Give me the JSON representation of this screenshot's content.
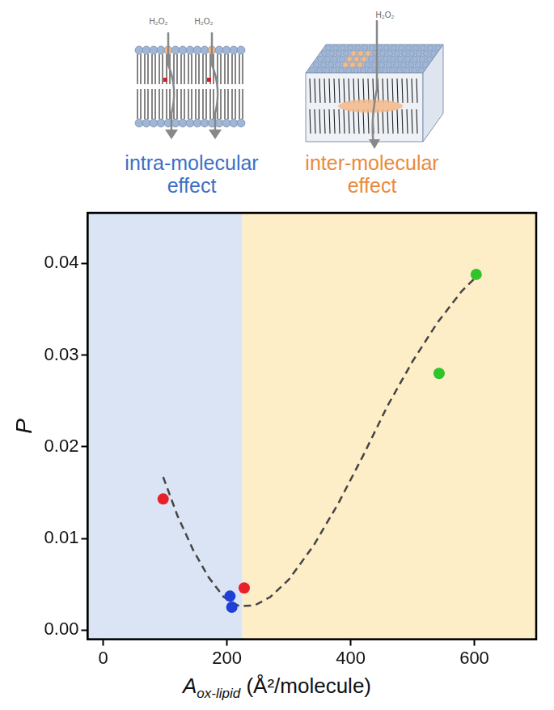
{
  "chart_data": {
    "type": "scatter",
    "xlabel": {
      "main": "A",
      "subscript": "ox-lipid",
      "suffix": " (Å²/molecule)"
    },
    "ylabel": "P",
    "xlim": [
      -25,
      700
    ],
    "xticks": [
      0,
      200,
      400,
      600
    ],
    "ylim": [
      -0.001,
      0.0455
    ],
    "yticks": [
      {
        "value": 0,
        "label": "0.00"
      },
      {
        "value": 0.01,
        "label": "0.01"
      },
      {
        "value": 0.02,
        "label": "0.02"
      },
      {
        "value": 0.03,
        "label": "0.03"
      },
      {
        "value": 0.04,
        "label": "0.04"
      }
    ],
    "grid": false,
    "regions": [
      {
        "from": -25,
        "to": 225,
        "color": "#dbe4f4",
        "caption": [
          "intra-molecular",
          "effect"
        ],
        "caption_color": "#3d6fc6",
        "illustration_labels": [
          "H₂O₂",
          "H₂O₂"
        ]
      },
      {
        "from": 225,
        "to": 700,
        "color": "#fdeec8",
        "caption": [
          "inter-molecular",
          "effect"
        ],
        "caption_color": "#ea8a3c",
        "illustration_labels": [
          "H₂O₂"
        ]
      }
    ],
    "series": [
      {
        "type": "line",
        "color": "#444444",
        "line_style": "dashed",
        "marker": "none",
        "x": [
          97,
          120,
          145,
          170,
          195,
          220,
          245,
          270,
          300,
          340,
          380,
          420,
          460,
          500,
          540,
          580,
          610
        ],
        "values": [
          0.0167,
          0.0125,
          0.0088,
          0.0058,
          0.0036,
          0.0026,
          0.0027,
          0.0036,
          0.0055,
          0.0092,
          0.0138,
          0.019,
          0.0245,
          0.0293,
          0.0335,
          0.037,
          0.039
        ]
      },
      {
        "type": "scatter",
        "color": "#e8202a",
        "marker": "circle",
        "x": [
          97,
          228
        ],
        "values": [
          0.0143,
          0.0046
        ]
      },
      {
        "type": "scatter",
        "color": "#1f3fd6",
        "marker": "circle",
        "x": [
          205,
          208
        ],
        "values": [
          0.0037,
          0.0025
        ]
      },
      {
        "type": "scatter",
        "color": "#2ec42a",
        "marker": "circle",
        "x": [
          543,
          603
        ],
        "values": [
          0.028,
          0.0388
        ]
      }
    ]
  }
}
